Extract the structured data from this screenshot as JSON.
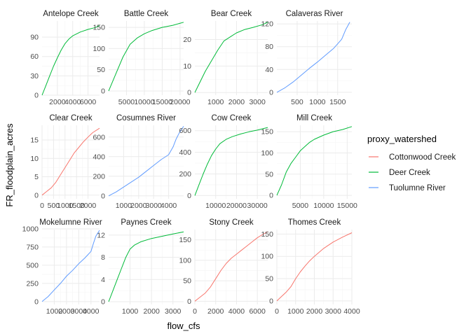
{
  "chart_data": {
    "type": "line",
    "xlabel": "flow_cfs",
    "ylabel": "FR_floodplain_acres",
    "legend": {
      "title": "proxy_watershed",
      "position": "right",
      "entries": [
        {
          "name": "Cottonwood Creek",
          "color": "#F8766D"
        },
        {
          "name": "Deer Creek",
          "color": "#00BA38"
        },
        {
          "name": "Tuolumne River",
          "color": "#619CFF"
        }
      ]
    },
    "grid": true,
    "facets": [
      {
        "title": "Antelope Creek",
        "series": "Deer Creek",
        "xlim": [
          0,
          7500
        ],
        "ylim": [
          0,
          115
        ],
        "xticks": [
          2000,
          4000,
          6000
        ],
        "xtick_labels": [
          "2000",
          "4000",
          "6000"
        ],
        "yticks": [
          0,
          30,
          60,
          90
        ],
        "ytick_labels": [
          "0",
          "30",
          "60",
          "90"
        ],
        "x": [
          0,
          500,
          1000,
          1500,
          2000,
          2500,
          3000,
          3500,
          4000,
          5000,
          6000,
          7000,
          7500
        ],
        "y": [
          0,
          15,
          30,
          45,
          58,
          70,
          80,
          87,
          92,
          98,
          102,
          105,
          108
        ]
      },
      {
        "title": "Battle Creek",
        "series": "Deer Creek",
        "xlim": [
          0,
          21000
        ],
        "ylim": [
          -10,
          165
        ],
        "xticks": [
          5000,
          10000,
          15000,
          20000
        ],
        "xtick_labels": [
          "5000",
          "10000",
          "15000",
          "20000"
        ],
        "yticks": [
          0,
          50,
          100,
          150
        ],
        "ytick_labels": [
          "0",
          "50",
          "100",
          "150"
        ],
        "x": [
          0,
          1000,
          2000,
          4000,
          6000,
          8000,
          10000,
          12000,
          15000,
          18000,
          21000
        ],
        "y": [
          0,
          20,
          40,
          80,
          110,
          125,
          135,
          142,
          150,
          155,
          162
        ]
      },
      {
        "title": "Bear Creek",
        "series": "Deer Creek",
        "xlim": [
          0,
          3500
        ],
        "ylim": [
          -1,
          27
        ],
        "xticks": [
          1000,
          2000,
          3000
        ],
        "xtick_labels": [
          "1000",
          "2000",
          "3000"
        ],
        "yticks": [
          0,
          10,
          20
        ],
        "ytick_labels": [
          "0",
          "10",
          "20"
        ],
        "x": [
          0,
          250,
          500,
          800,
          1100,
          1400,
          1700,
          2000,
          2400,
          2800,
          3200,
          3500
        ],
        "y": [
          0,
          4,
          8,
          12,
          16,
          19.5,
          21,
          22.5,
          23.8,
          24.6,
          25.5,
          26.5
        ]
      },
      {
        "title": "Calaveras River",
        "series": "Tuolumne River",
        "xlim": [
          0,
          1850
        ],
        "ylim": [
          -5,
          125
        ],
        "xticks": [
          500,
          1000,
          1500
        ],
        "xtick_labels": [
          "500",
          "1000",
          "1500"
        ],
        "yticks": [
          0,
          40,
          80,
          120
        ],
        "ytick_labels": [
          "0",
          "40",
          "80",
          "120"
        ],
        "x": [
          0,
          200,
          400,
          600,
          800,
          1000,
          1200,
          1400,
          1500,
          1600,
          1700,
          1800
        ],
        "y": [
          0,
          8,
          18,
          30,
          42,
          53,
          65,
          77,
          85,
          93,
          110,
          123
        ]
      },
      {
        "title": "Clear Creek",
        "series": "Cottonwood Creek",
        "xlim": [
          0,
          2500
        ],
        "ylim": [
          -1,
          19
        ],
        "xticks": [
          0,
          500,
          1000,
          1500,
          2000
        ],
        "xtick_labels": [
          "0",
          "500",
          "1000",
          "1500",
          "2000"
        ],
        "yticks": [
          0,
          5,
          10,
          15
        ],
        "ytick_labels": [
          "0",
          "5",
          "10",
          "15"
        ],
        "x": [
          0,
          200,
          400,
          600,
          800,
          1000,
          1200,
          1400,
          1600,
          1800,
          2000,
          2200,
          2500
        ],
        "y": [
          0,
          1,
          2,
          3.5,
          5.5,
          7.5,
          9.5,
          11.5,
          13,
          14.5,
          15.8,
          17,
          18.2
        ]
      },
      {
        "title": "Cosumnes River",
        "series": "Tuolumne River",
        "xlim": [
          0,
          5000
        ],
        "ylim": [
          -30,
          720
        ],
        "xticks": [
          1000,
          2000,
          3000,
          4000
        ],
        "xtick_labels": [
          "1000",
          "2000",
          "3000",
          "4000"
        ],
        "yticks": [
          0,
          200,
          400,
          600
        ],
        "ytick_labels": [
          "0",
          "200",
          "400",
          "600"
        ],
        "x": [
          0,
          500,
          1000,
          1500,
          2000,
          2500,
          3000,
          3500,
          4000,
          4300,
          4500,
          4700,
          5000
        ],
        "y": [
          0,
          40,
          90,
          140,
          190,
          250,
          310,
          370,
          420,
          500,
          580,
          640,
          710
        ]
      },
      {
        "title": "Cow Creek",
        "series": "Deer Creek",
        "xlim": [
          0,
          35000
        ],
        "ylim": [
          -30,
          650
        ],
        "xticks": [
          10000,
          20000,
          30000
        ],
        "xtick_labels": [
          "10000",
          "20000",
          "30000"
        ],
        "yticks": [
          0,
          200,
          400,
          600
        ],
        "ytick_labels": [
          "0",
          "200",
          "400",
          "600"
        ],
        "x": [
          0,
          2000,
          4000,
          6000,
          8000,
          10000,
          12000,
          15000,
          18000,
          22000,
          26000,
          30000,
          35000
        ],
        "y": [
          0,
          100,
          200,
          290,
          370,
          430,
          480,
          520,
          545,
          570,
          590,
          605,
          630
        ]
      },
      {
        "title": "Mill Creek",
        "series": "Deer Creek",
        "xlim": [
          0,
          16000
        ],
        "ylim": [
          -8,
          165
        ],
        "xticks": [
          5000,
          10000,
          15000
        ],
        "xtick_labels": [
          "5000",
          "10000",
          "15000"
        ],
        "yticks": [
          0,
          50,
          100,
          150
        ],
        "ytick_labels": [
          "0",
          "50",
          "100",
          "150"
        ],
        "x": [
          0,
          1000,
          2000,
          3000,
          4000,
          5000,
          6000,
          7000,
          8000,
          10000,
          12000,
          14000,
          16000
        ],
        "y": [
          0,
          25,
          55,
          75,
          90,
          105,
          115,
          125,
          132,
          142,
          150,
          155,
          162
        ]
      },
      {
        "title": "Mokelumne River",
        "series": "Tuolumne River",
        "xlim": [
          0,
          4700
        ],
        "ylim": [
          -40,
          990
        ],
        "xticks": [
          1000,
          2000,
          3000,
          4000
        ],
        "xtick_labels": [
          "1000",
          "2000",
          "3000",
          "4000"
        ],
        "yticks": [
          0,
          250,
          500,
          750,
          1000
        ],
        "ytick_labels": [
          "0",
          "250",
          "500",
          "750",
          "1000"
        ],
        "x": [
          0,
          500,
          1000,
          1500,
          2000,
          2500,
          3000,
          3500,
          4000,
          4200,
          4400,
          4700
        ],
        "y": [
          0,
          70,
          160,
          250,
          350,
          430,
          520,
          600,
          690,
          800,
          900,
          980
        ]
      },
      {
        "title": "Paynes Creek",
        "series": "Deer Creek",
        "xlim": [
          0,
          3500
        ],
        "ylim": [
          -0.5,
          13
        ],
        "xticks": [
          1000,
          2000,
          3000
        ],
        "xtick_labels": [
          "1000",
          "2000",
          "3000"
        ],
        "yticks": [
          0,
          4,
          8,
          12
        ],
        "ytick_labels": [
          "0",
          "4",
          "8",
          "12"
        ],
        "x": [
          0,
          200,
          400,
          600,
          800,
          1000,
          1200,
          1500,
          2000,
          2500,
          3000,
          3500
        ],
        "y": [
          0,
          2,
          4,
          6,
          8,
          9.5,
          10.2,
          10.8,
          11.4,
          11.8,
          12.2,
          12.6
        ]
      },
      {
        "title": "Stony Creek",
        "series": "Cottonwood Creek",
        "xlim": [
          0,
          7000
        ],
        "ylim": [
          -8,
          175
        ],
        "xticks": [
          0,
          2000,
          4000,
          6000
        ],
        "xtick_labels": [
          "0",
          "2000",
          "4000",
          "6000"
        ],
        "yticks": [
          0,
          50,
          100,
          150
        ],
        "ytick_labels": [
          "0",
          "50",
          "100",
          "150"
        ],
        "x": [
          0,
          500,
          1000,
          1500,
          2000,
          2500,
          3000,
          3500,
          4000,
          4500,
          5000,
          5500,
          6000,
          6500,
          7000
        ],
        "y": [
          0,
          10,
          20,
          35,
          55,
          75,
          92,
          105,
          115,
          125,
          135,
          145,
          155,
          163,
          170
        ]
      },
      {
        "title": "Thomes Creek",
        "series": "Cottonwood Creek",
        "xlim": [
          0,
          4000
        ],
        "ylim": [
          -8,
          160
        ],
        "xticks": [
          0,
          1000,
          2000,
          3000,
          4000
        ],
        "xtick_labels": [
          "0",
          "1000",
          "2000",
          "3000",
          "4000"
        ],
        "yticks": [
          0,
          50,
          100,
          150
        ],
        "ytick_labels": [
          "0",
          "50",
          "100",
          "150"
        ],
        "x": [
          0,
          250,
          500,
          750,
          1000,
          1250,
          1500,
          1750,
          2000,
          2500,
          3000,
          3500,
          4000
        ],
        "y": [
          0,
          10,
          20,
          32,
          50,
          65,
          78,
          90,
          100,
          118,
          132,
          143,
          153
        ]
      }
    ]
  }
}
